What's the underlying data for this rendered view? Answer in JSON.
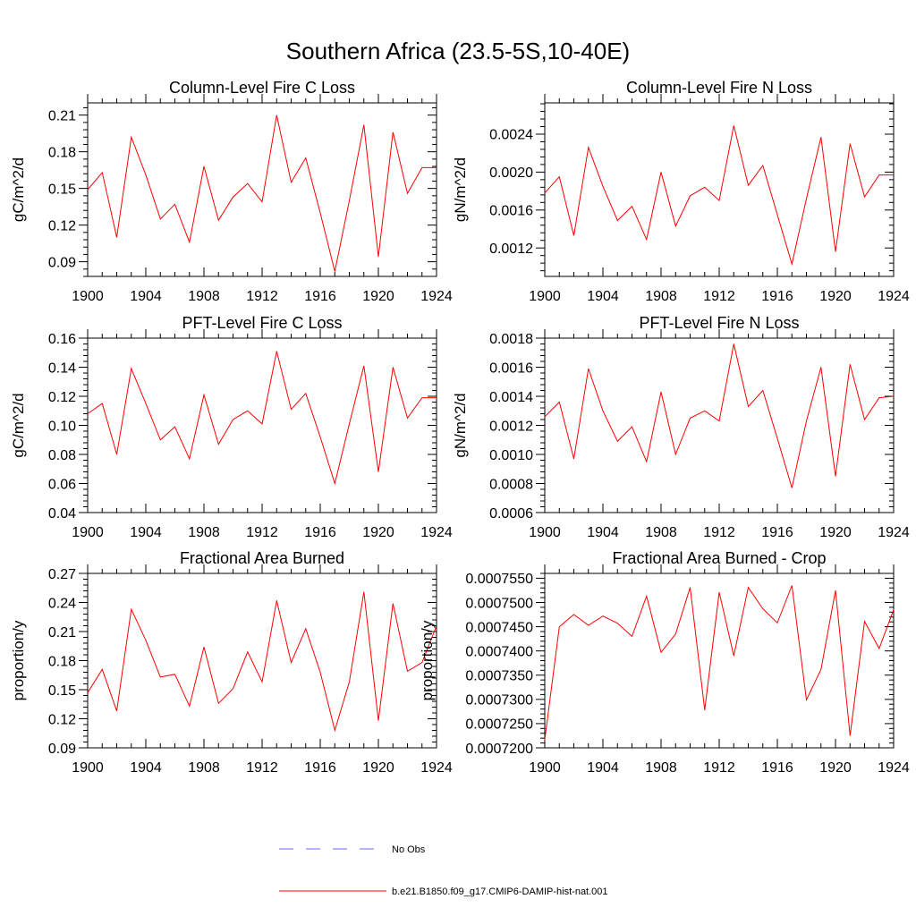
{
  "title": "Southern Africa (23.5-5S,10-40E)",
  "colors": {
    "run": "#ff0000",
    "obs": "#6a6aff"
  },
  "legend": [
    {
      "label": "No Obs",
      "style": "dashed",
      "color": "#6a6aff"
    },
    {
      "label": "b.e21.B1850.f09_g17.CMIP6-DAMIP-hist-nat.001",
      "style": "solid",
      "color": "#ff0000"
    }
  ],
  "chart_data": [
    {
      "type": "line",
      "title": "Column-Level Fire C Loss",
      "ylabel": "gC/m^2/d",
      "xlim": [
        1900,
        1924
      ],
      "ylim": [
        0.078,
        0.22
      ],
      "xticks": [
        "1900",
        "1904",
        "1908",
        "1912",
        "1916",
        "1920",
        "1924"
      ],
      "yticks": [
        "0.09",
        "0.12",
        "0.15",
        "0.18",
        "0.21"
      ],
      "series": [
        {
          "values": [
            0.149,
            0.163,
            0.11,
            0.192,
            0.161,
            0.125,
            0.137,
            0.106,
            0.168,
            0.124,
            0.143,
            0.154,
            0.139,
            0.21,
            0.155,
            0.175,
            0.13,
            0.082,
            0.14,
            0.202,
            0.094,
            0.196,
            0.146,
            0.167,
            0.167
          ]
        }
      ]
    },
    {
      "type": "line",
      "title": "Column-Level Fire N Loss",
      "ylabel": "gN/m^2/d",
      "xlim": [
        1900,
        1924
      ],
      "ylim": [
        0.0009,
        0.00273
      ],
      "xticks": [
        "1900",
        "1904",
        "1908",
        "1912",
        "1916",
        "1920",
        "1924"
      ],
      "yticks": [
        "0.0012",
        "0.0016",
        "0.0020",
        "0.0024"
      ],
      "series": [
        {
          "values": [
            0.00178,
            0.00195,
            0.00133,
            0.00226,
            0.00185,
            0.00149,
            0.00164,
            0.00129,
            0.002,
            0.00143,
            0.00175,
            0.00184,
            0.0017,
            0.00249,
            0.00186,
            0.00207,
            0.00155,
            0.00103,
            0.00172,
            0.00237,
            0.00116,
            0.0023,
            0.00174,
            0.00197,
            0.00197
          ]
        }
      ]
    },
    {
      "type": "line",
      "title": "PFT-Level Fire C Loss",
      "ylabel": "gC/m^2/d",
      "xlim": [
        1900,
        1924
      ],
      "ylim": [
        0.04,
        0.16
      ],
      "xticks": [
        "1900",
        "1904",
        "1908",
        "1912",
        "1916",
        "1920",
        "1924"
      ],
      "yticks": [
        "0.04",
        "0.06",
        "0.08",
        "0.10",
        "0.12",
        "0.14",
        "0.16"
      ],
      "series": [
        {
          "values": [
            0.108,
            0.115,
            0.08,
            0.139,
            0.115,
            0.09,
            0.099,
            0.077,
            0.121,
            0.087,
            0.104,
            0.11,
            0.101,
            0.151,
            0.111,
            0.122,
            0.092,
            0.06,
            0.101,
            0.141,
            0.068,
            0.14,
            0.105,
            0.119,
            0.119
          ]
        }
      ]
    },
    {
      "type": "line",
      "title": "PFT-Level Fire N Loss",
      "ylabel": "gN/m^2/d",
      "xlim": [
        1900,
        1924
      ],
      "ylim": [
        0.0006,
        0.0018
      ],
      "xticks": [
        "1900",
        "1904",
        "1908",
        "1912",
        "1916",
        "1920",
        "1924"
      ],
      "yticks": [
        "0.0006",
        "0.0008",
        "0.0010",
        "0.0012",
        "0.0014",
        "0.0016",
        "0.0018"
      ],
      "series": [
        {
          "values": [
            0.00126,
            0.00136,
            0.00097,
            0.00159,
            0.0013,
            0.00109,
            0.00119,
            0.00095,
            0.00143,
            0.001,
            0.00125,
            0.0013,
            0.00123,
            0.00176,
            0.00133,
            0.00144,
            0.00111,
            0.00077,
            0.00123,
            0.0016,
            0.00085,
            0.00162,
            0.00124,
            0.00139,
            0.0014
          ]
        }
      ]
    },
    {
      "type": "line",
      "title": "Fractional Area Burned",
      "ylabel": "proportion/y",
      "xlim": [
        1900,
        1924
      ],
      "ylim": [
        0.09,
        0.27
      ],
      "xticks": [
        "1900",
        "1904",
        "1908",
        "1912",
        "1916",
        "1920",
        "1924"
      ],
      "yticks": [
        "0.09",
        "0.12",
        "0.15",
        "0.18",
        "0.21",
        "0.24",
        "0.27"
      ],
      "series": [
        {
          "values": [
            0.147,
            0.171,
            0.128,
            0.233,
            0.201,
            0.163,
            0.166,
            0.133,
            0.194,
            0.136,
            0.151,
            0.189,
            0.158,
            0.242,
            0.178,
            0.213,
            0.168,
            0.108,
            0.158,
            0.251,
            0.118,
            0.239,
            0.169,
            0.178,
            0.216
          ]
        }
      ]
    },
    {
      "type": "line",
      "title": "Fractional Area Burned - Crop",
      "ylabel": "proportion/y",
      "xlim": [
        1900,
        1924
      ],
      "ylim": [
        0.00072,
        0.000756
      ],
      "xticks": [
        "1900",
        "1904",
        "1908",
        "1912",
        "1916",
        "1920",
        "1924"
      ],
      "yticks": [
        "0.0007200",
        "0.0007250",
        "0.0007300",
        "0.0007350",
        "0.0007400",
        "0.0007450",
        "0.0007500",
        "0.0007550"
      ],
      "series": [
        {
          "values": [
            0.0007217,
            0.000745,
            0.0007475,
            0.0007453,
            0.0007472,
            0.0007457,
            0.000743,
            0.0007513,
            0.0007397,
            0.0007435,
            0.0007531,
            0.0007278,
            0.0007521,
            0.000739,
            0.0007531,
            0.0007487,
            0.0007458,
            0.0007535,
            0.0007299,
            0.0007362,
            0.0007525,
            0.0007225,
            0.0007461,
            0.0007405,
            0.0007485
          ]
        }
      ]
    }
  ]
}
